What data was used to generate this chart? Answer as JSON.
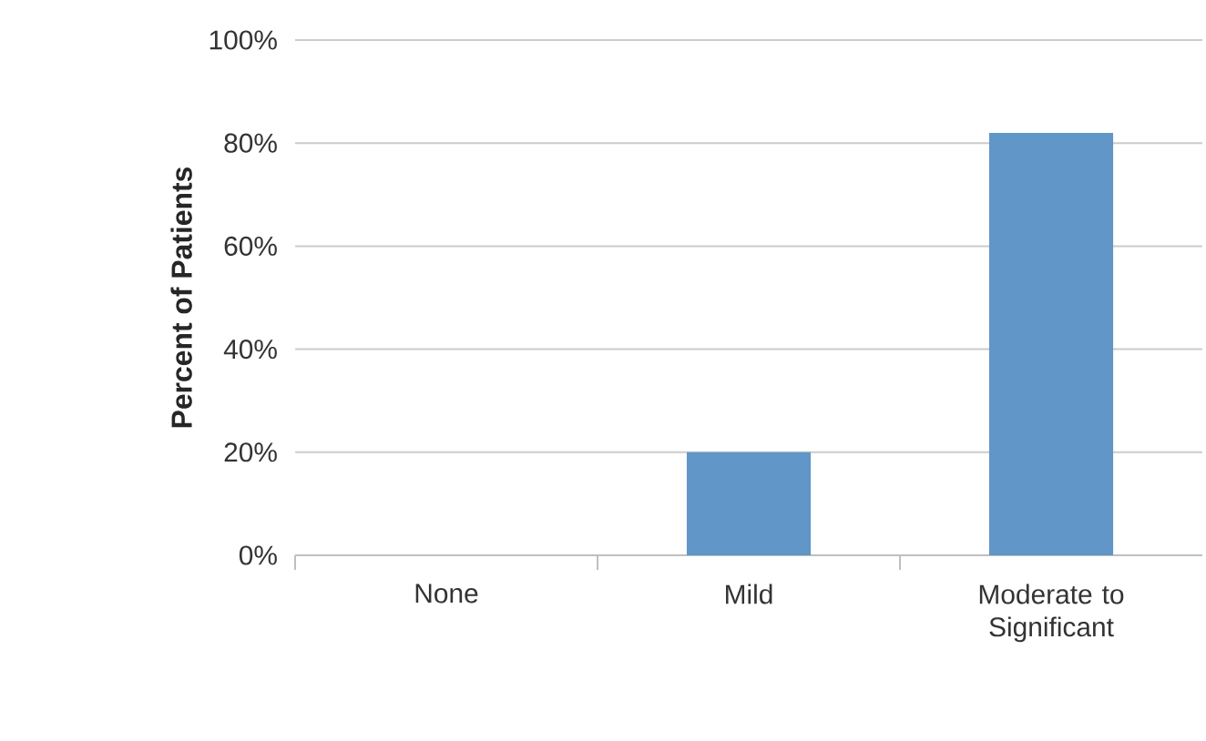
{
  "chart_data": {
    "type": "bar",
    "ylabel": "Percent of Patients",
    "categories": [
      "None",
      "Mild",
      "Moderate to Significant"
    ],
    "values": [
      0,
      20,
      82
    ],
    "color": "#6096c8",
    "ylim": [
      0,
      100
    ],
    "yticks": [
      {
        "value": 0,
        "label": "0%"
      },
      {
        "value": 20,
        "label": "20%"
      },
      {
        "value": 40,
        "label": "40%"
      },
      {
        "value": 60,
        "label": "60%"
      },
      {
        "value": 80,
        "label": "80%"
      },
      {
        "value": 100,
        "label": "100%"
      }
    ],
    "grid": "y"
  }
}
